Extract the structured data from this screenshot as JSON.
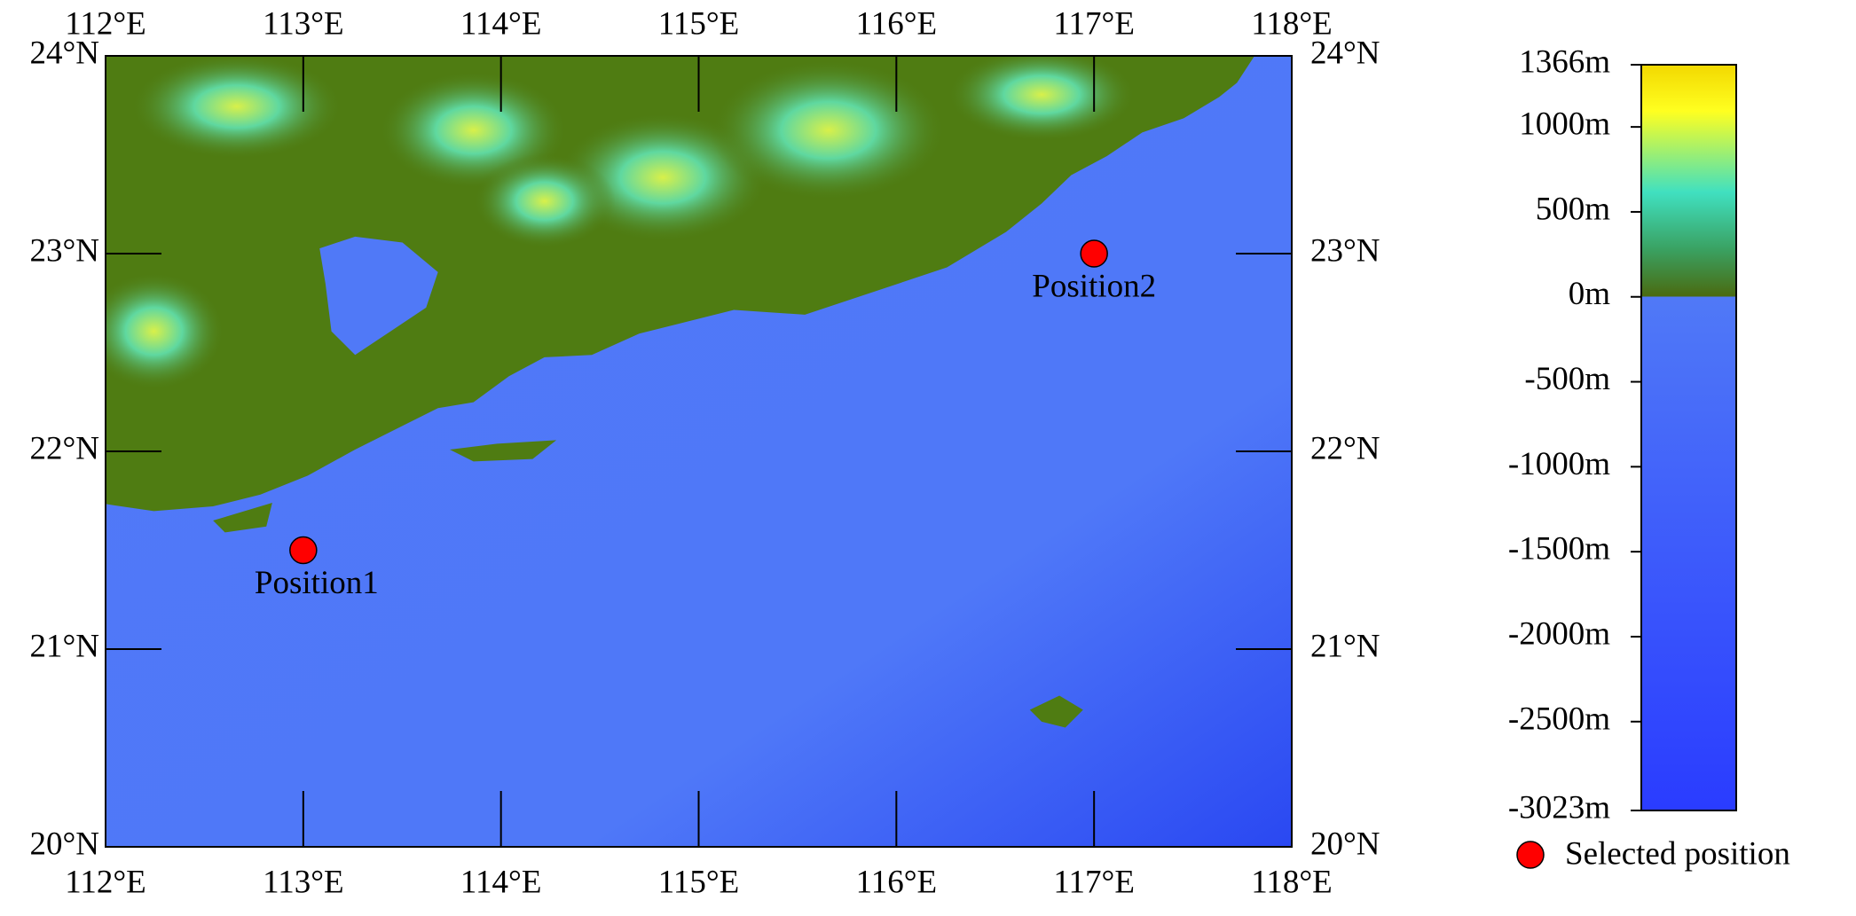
{
  "map": {
    "xlim": [
      112,
      118
    ],
    "ylim": [
      20,
      24
    ],
    "lon_ticks": [
      {
        "value": 112,
        "label": "112°E"
      },
      {
        "value": 113,
        "label": "113°E"
      },
      {
        "value": 114,
        "label": "114°E"
      },
      {
        "value": 115,
        "label": "115°E"
      },
      {
        "value": 116,
        "label": "116°E"
      },
      {
        "value": 117,
        "label": "117°E"
      },
      {
        "value": 118,
        "label": "118°E"
      }
    ],
    "lat_ticks": [
      {
        "value": 20,
        "label": "20°N"
      },
      {
        "value": 21,
        "label": "21°N"
      },
      {
        "value": 22,
        "label": "22°N"
      },
      {
        "value": 23,
        "label": "23°N"
      },
      {
        "value": 24,
        "label": "24°N"
      }
    ],
    "positions": [
      {
        "label": "Position1",
        "lon": 113,
        "lat": 21.5
      },
      {
        "label": "Position2",
        "lon": 117,
        "lat": 23
      }
    ],
    "marker_color": "#ff0000"
  },
  "colorbar": {
    "lim": [
      -3023,
      1366
    ],
    "ticks": [
      {
        "value": 1366,
        "label": "1366m"
      },
      {
        "value": 1000,
        "label": "1000m"
      },
      {
        "value": 500,
        "label": "500m"
      },
      {
        "value": 0,
        "label": "0m"
      },
      {
        "value": -500,
        "label": "-500m"
      },
      {
        "value": -1000,
        "label": "-1000m"
      },
      {
        "value": -1500,
        "label": "-1500m"
      },
      {
        "value": -2000,
        "label": "-2000m"
      },
      {
        "value": -2500,
        "label": "-2500m"
      },
      {
        "value": -3023,
        "label": "-3023m"
      }
    ]
  },
  "legend": {
    "label": "Selected position"
  }
}
